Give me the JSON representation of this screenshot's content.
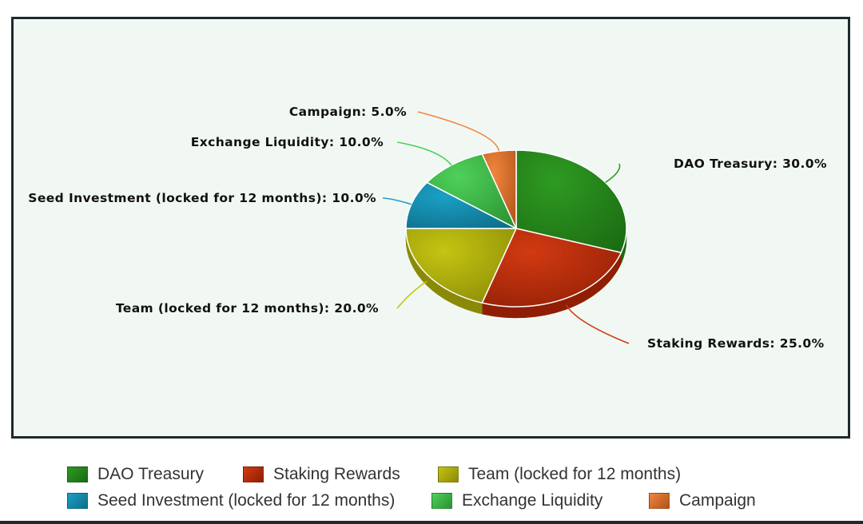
{
  "chart_data": {
    "type": "pie",
    "slices": [
      {
        "name": "DAO Treasury",
        "value": 30.0,
        "label": "DAO Treasury: 30.0%",
        "color": "#2e9a22",
        "dark": "#1b6a12"
      },
      {
        "name": "Staking Rewards",
        "value": 25.0,
        "label": "Staking Rewards: 25.0%",
        "color": "#d23a12",
        "dark": "#8f1e05"
      },
      {
        "name": "Team (locked for 12 months)",
        "value": 20.0,
        "label": "Team (locked for 12 months): 20.0%",
        "color": "#c4c412",
        "dark": "#8a8a08"
      },
      {
        "name": "Seed Investment (locked for 12 months)",
        "value": 10.0,
        "label": "Seed Investment (locked for 12 months): 10.0%",
        "color": "#1aa0c6",
        "dark": "#0e6d88"
      },
      {
        "name": "Exchange Liquidity",
        "value": 10.0,
        "label": "Exchange Liquidity: 10.0%",
        "color": "#4fd05a",
        "dark": "#2a9232"
      },
      {
        "name": "Campaign",
        "value": 5.0,
        "label": "Campaign: 5.0%",
        "color": "#f0843e",
        "dark": "#b05418"
      }
    ]
  },
  "legend": {
    "rows": [
      [
        0,
        1,
        2
      ],
      [
        3,
        4,
        5
      ]
    ]
  }
}
